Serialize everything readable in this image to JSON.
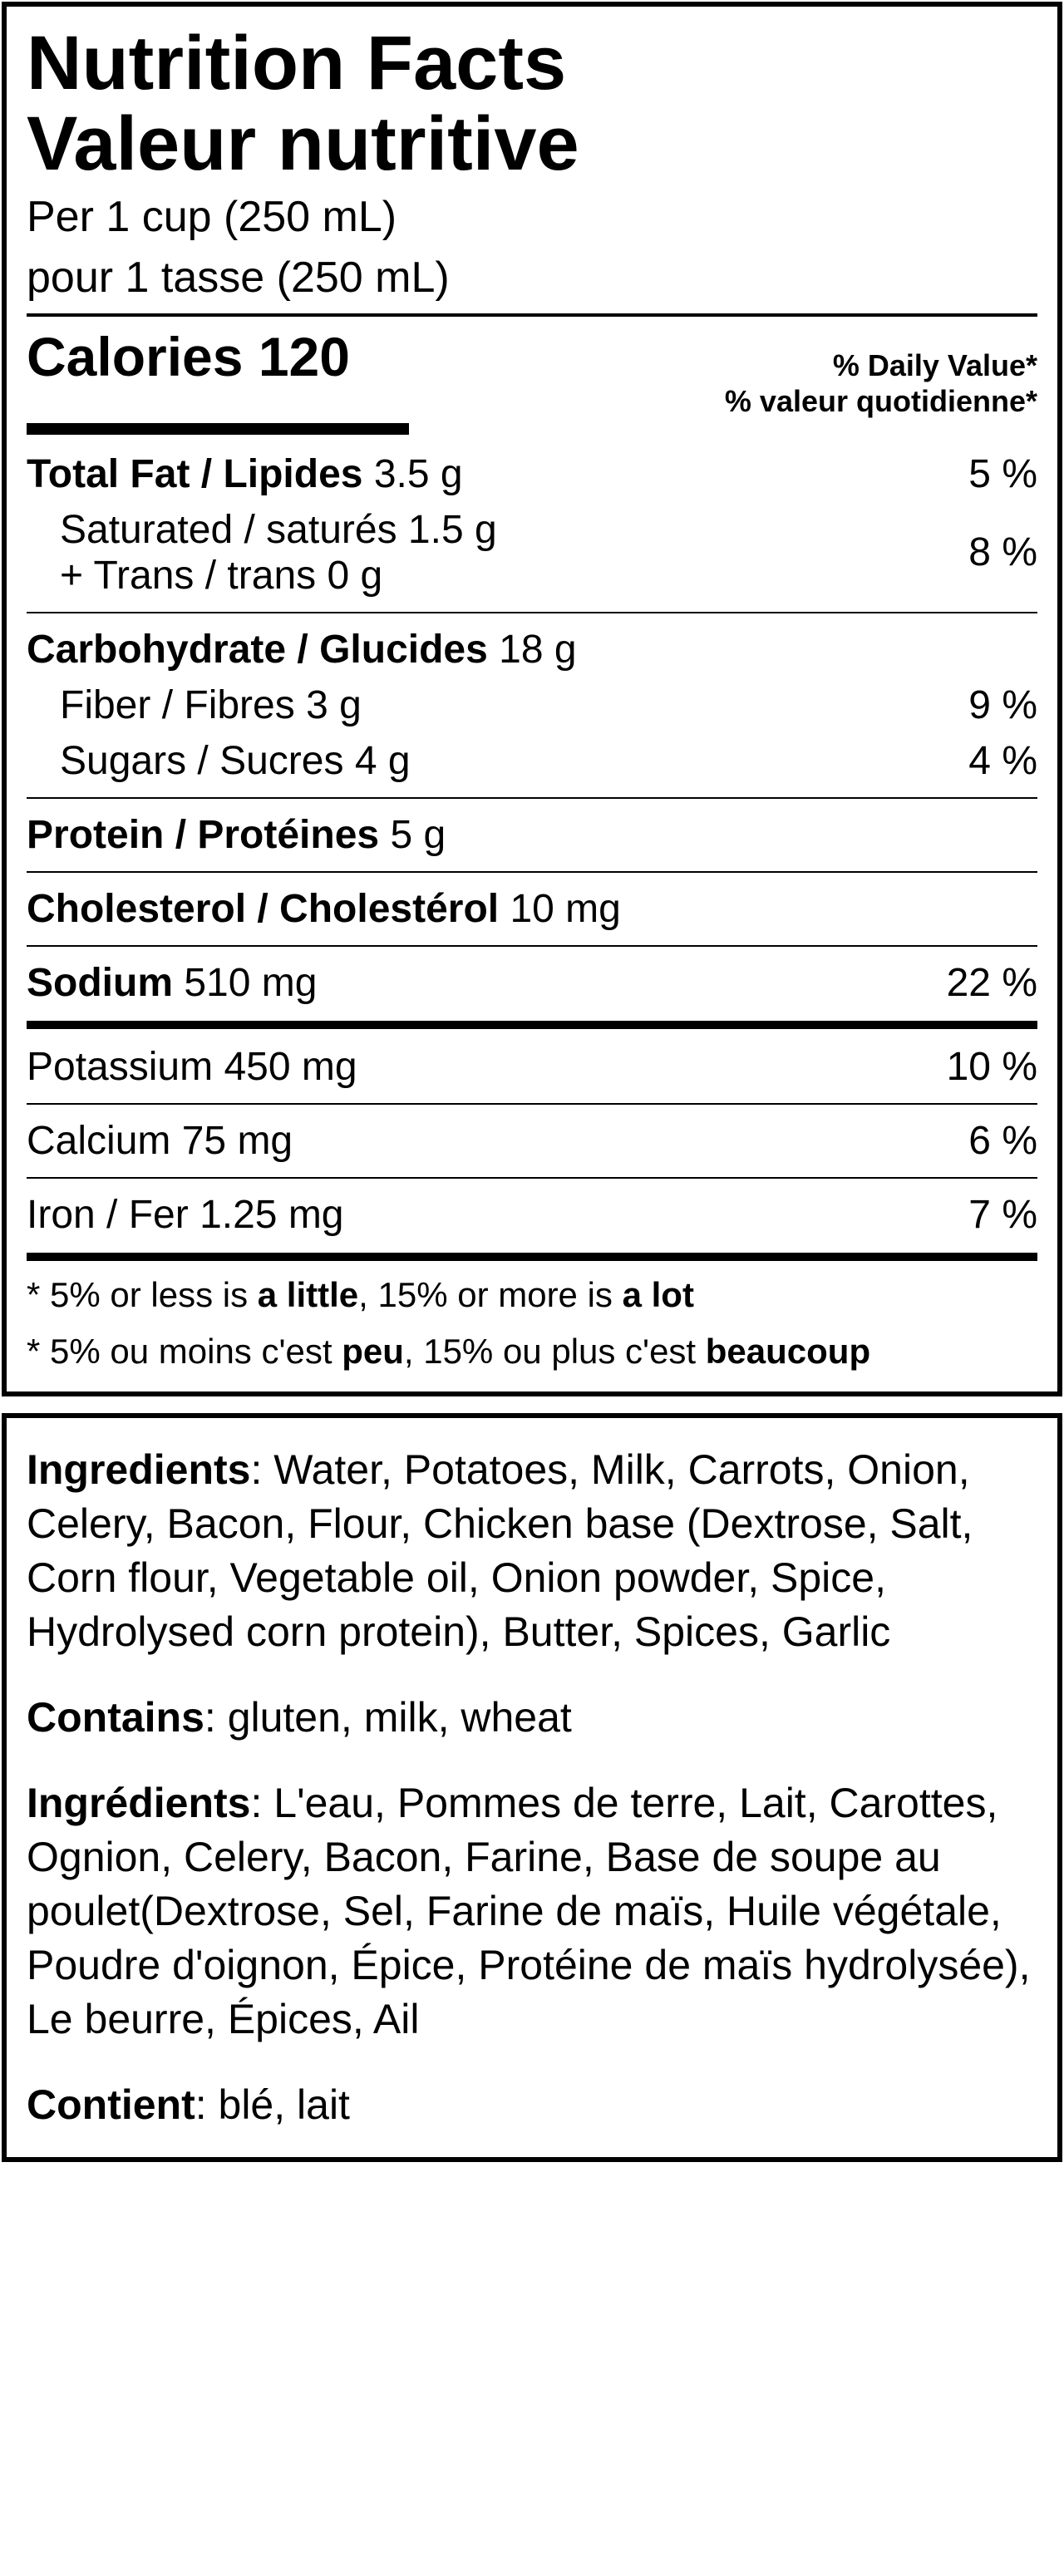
{
  "panel1": {
    "title_en": "Nutrition Facts",
    "title_fr": "Valeur nutritive",
    "serving_en": "Per 1 cup (250 mL)",
    "serving_fr": "pour 1 tasse (250 mL)",
    "calories_label": "Calories",
    "calories_value": "120",
    "dv_en": "% Daily Value*",
    "dv_fr": "% valeur quotidienne*",
    "fat": {
      "label": "Total Fat / Lipides",
      "value": "3.5 g",
      "dv": "5 %",
      "sat_label": "Saturated / saturés",
      "sat_value": "1.5 g",
      "trans_label": "+ Trans / trans",
      "trans_value": "0 g",
      "sat_trans_dv": "8 %"
    },
    "carb": {
      "label": "Carbohydrate / Glucides",
      "value": "18 g",
      "fiber_label": "Fiber / Fibres",
      "fiber_value": "3 g",
      "fiber_dv": "9 %",
      "sugars_label": "Sugars / Sucres",
      "sugars_value": "4 g",
      "sugars_dv": "4 %"
    },
    "protein": {
      "label": "Protein / Protéines",
      "value": "5 g"
    },
    "chol": {
      "label": "Cholesterol / Cholestérol",
      "value": "10 mg"
    },
    "sodium": {
      "label": "Sodium",
      "value": "510 mg",
      "dv": "22 %"
    },
    "potassium": {
      "label": "Potassium",
      "value": "450 mg",
      "dv": "10 %"
    },
    "calcium": {
      "label": "Calcium",
      "value": "75 mg",
      "dv": "6 %"
    },
    "iron": {
      "label": "Iron / Fer",
      "value": "1.25 mg",
      "dv": "7 %"
    },
    "foot_en": {
      "p1": "* 5% or less is ",
      "b1": "a little",
      "p2": ", 15% or more is ",
      "b2": "a lot"
    },
    "foot_fr": {
      "p1": "* 5% ou moins c'est ",
      "b1": "peu",
      "p2": ", 15% ou plus c'est ",
      "b2": "beaucoup"
    }
  },
  "panel2": {
    "ing_en_label": "Ingredients",
    "ing_en": ": Water, Potatoes, Milk, Carrots, Onion, Celery, Bacon, Flour, Chicken base (Dextrose, Salt, Corn flour, Vegetable oil, Onion powder, Spice, Hydrolysed corn protein), Butter, Spices, Garlic",
    "contains_en_label": "Contains",
    "contains_en": ": gluten, milk, wheat",
    "ing_fr_label": "Ingrédients",
    "ing_fr": ": L'eau, Pommes de terre, Lait, Carottes, Ognion, Celery, Bacon, Farine, Base de soupe au poulet(Dextrose, Sel, Farine de maïs, Huile végétale, Poudre d'oignon, Épice, Protéine de maïs hydrolysée), Le beurre, Épices, Ail",
    "contains_fr_label": "Contient",
    "contains_fr": ": blé, lait"
  }
}
